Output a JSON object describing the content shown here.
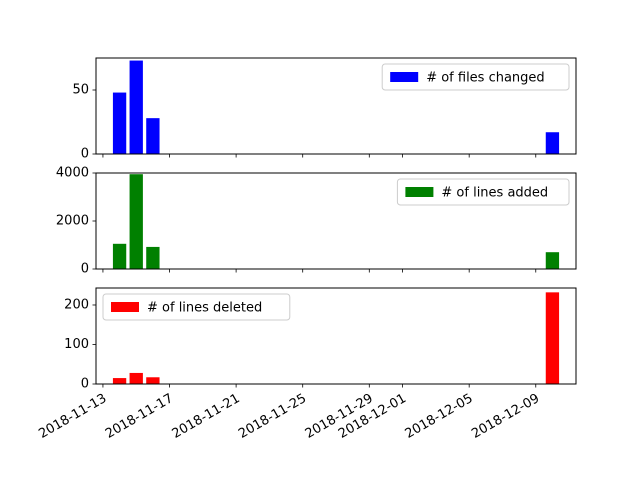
{
  "chart_data": [
    {
      "type": "bar",
      "x": [
        "2018-11-14",
        "2018-11-15",
        "2018-11-16",
        "2018-12-10"
      ],
      "series": [
        {
          "name": "# of files changed",
          "values": [
            48,
            73,
            28,
            17
          ],
          "color": "#0000ff"
        }
      ],
      "ylim": [
        0,
        75
      ],
      "yticks": [
        0,
        50
      ],
      "legend": "upper right",
      "grid": false
    },
    {
      "type": "bar",
      "x": [
        "2018-11-14",
        "2018-11-15",
        "2018-11-16",
        "2018-12-10"
      ],
      "series": [
        {
          "name": "# of lines added",
          "values": [
            1050,
            3950,
            920,
            700
          ],
          "color": "#008000"
        }
      ],
      "ylim": [
        0,
        4000
      ],
      "yticks": [
        0,
        2000,
        4000
      ],
      "legend": "upper right",
      "grid": false
    },
    {
      "type": "bar",
      "x": [
        "2018-11-14",
        "2018-11-15",
        "2018-11-16",
        "2018-12-10"
      ],
      "series": [
        {
          "name": "# of lines deleted",
          "values": [
            15,
            28,
            17,
            232
          ],
          "color": "#ff0000"
        }
      ],
      "ylim": [
        0,
        243
      ],
      "yticks": [
        0,
        100,
        200
      ],
      "legend": "upper left",
      "grid": false
    }
  ],
  "x_axis": {
    "type": "date",
    "range": [
      "2018-11-12T14:00",
      "2018-12-11T10:00"
    ],
    "ticks": [
      "2018-11-13",
      "2018-11-17",
      "2018-11-21",
      "2018-11-25",
      "2018-11-29",
      "2018-12-01",
      "2018-12-05",
      "2018-12-09"
    ],
    "bar_width_days": 0.8,
    "label_rotation": 30
  }
}
